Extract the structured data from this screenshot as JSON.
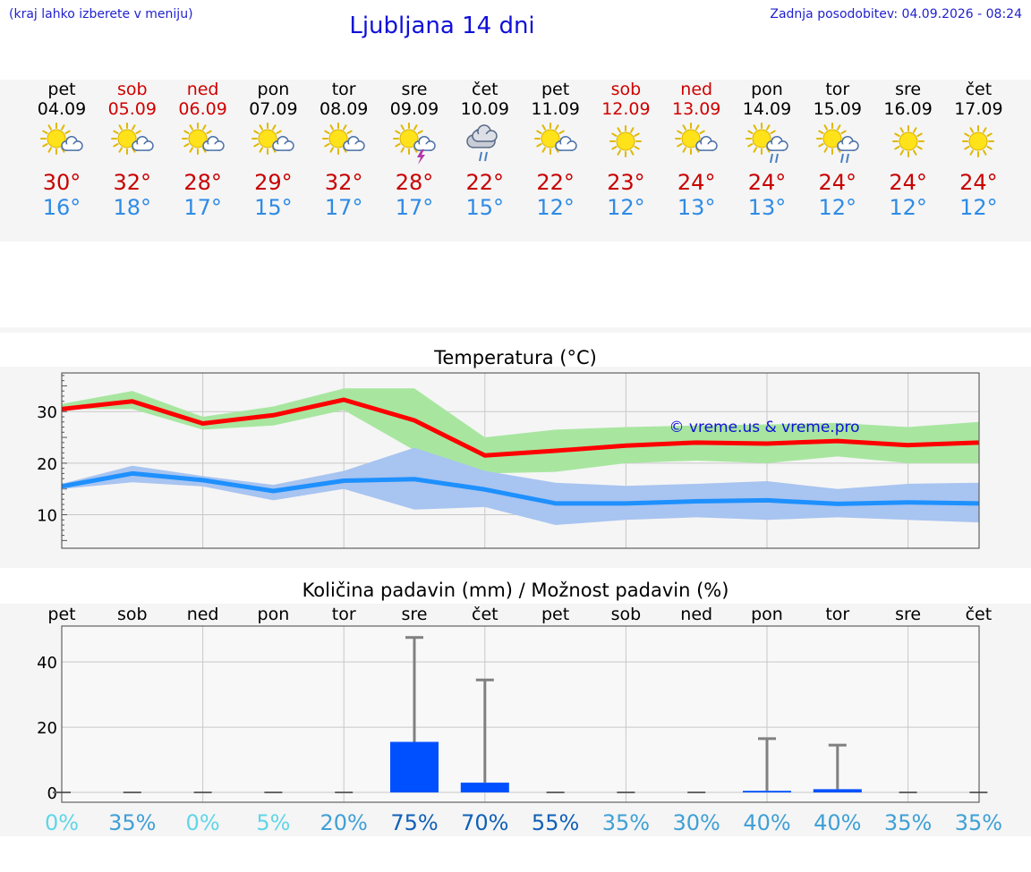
{
  "header": {
    "hint": "(kraj lahko izberete v meniju)",
    "title": "Ljubljana 14 dni",
    "update": "Zadnja posodobitev: 04.09.2026 - 08:24"
  },
  "days": [
    {
      "name": "pet",
      "date": "04.09",
      "weekend": false,
      "icon": "sun-cloud-icon",
      "max": "30°",
      "min": "16°"
    },
    {
      "name": "sob",
      "date": "05.09",
      "weekend": true,
      "icon": "sun-cloud-icon",
      "max": "32°",
      "min": "18°"
    },
    {
      "name": "ned",
      "date": "06.09",
      "weekend": true,
      "icon": "sun-cloud-icon",
      "max": "28°",
      "min": "17°"
    },
    {
      "name": "pon",
      "date": "07.09",
      "weekend": false,
      "icon": "sun-cloud-icon",
      "max": "29°",
      "min": "15°"
    },
    {
      "name": "tor",
      "date": "08.09",
      "weekend": false,
      "icon": "sun-cloud-icon",
      "max": "32°",
      "min": "17°"
    },
    {
      "name": "sre",
      "date": "09.09",
      "weekend": false,
      "icon": "sun-thunder-icon",
      "max": "28°",
      "min": "17°"
    },
    {
      "name": "čet",
      "date": "10.09",
      "weekend": false,
      "icon": "cloud-rain-icon",
      "max": "22°",
      "min": "15°"
    },
    {
      "name": "pet",
      "date": "11.09",
      "weekend": false,
      "icon": "sun-cloud-icon",
      "max": "22°",
      "min": "12°"
    },
    {
      "name": "sob",
      "date": "12.09",
      "weekend": true,
      "icon": "sun-icon",
      "max": "23°",
      "min": "12°"
    },
    {
      "name": "ned",
      "date": "13.09",
      "weekend": true,
      "icon": "sun-cloud-icon",
      "max": "24°",
      "min": "13°"
    },
    {
      "name": "pon",
      "date": "14.09",
      "weekend": false,
      "icon": "sun-cloud-rain-icon",
      "max": "24°",
      "min": "13°"
    },
    {
      "name": "tor",
      "date": "15.09",
      "weekend": false,
      "icon": "sun-cloud-rain-icon",
      "max": "24°",
      "min": "12°"
    },
    {
      "name": "sre",
      "date": "16.09",
      "weekend": false,
      "icon": "sun-icon",
      "max": "24°",
      "min": "12°"
    },
    {
      "name": "čet",
      "date": "17.09",
      "weekend": false,
      "icon": "sun-icon",
      "max": "24°",
      "min": "12°"
    }
  ],
  "colors": {
    "max_line": "#ff0000",
    "max_band": "#a8e6a0",
    "min_line": "#1e90ff",
    "min_band": "#a8c4f0",
    "bar": "#0050ff",
    "whisker": "#808080",
    "weekend": "#d00000"
  },
  "chart_data": [
    {
      "type": "line",
      "title": "Temperatura (°C)",
      "watermark": "© vreme.us & vreme.pro",
      "x": [
        "pet",
        "sob",
        "ned",
        "pon",
        "tor",
        "sre",
        "čet",
        "pet",
        "sob",
        "ned",
        "pon",
        "tor",
        "sre",
        "čet"
      ],
      "ylim": [
        3.5,
        37.5
      ],
      "yticks": [
        10,
        20,
        30
      ],
      "grid": true,
      "series": [
        {
          "role": "max",
          "values": [
            30.5,
            32,
            27.7,
            29.3,
            32.3,
            28.3,
            21.5,
            22.4,
            23.4,
            24,
            23.8,
            24.3,
            23.5,
            24
          ],
          "band_low": [
            30.5,
            30.5,
            26.5,
            27.3,
            30.3,
            22.5,
            18,
            18.3,
            20,
            20.5,
            20,
            21.3,
            20,
            20
          ],
          "band_high": [
            31.5,
            34,
            29,
            31,
            34.5,
            34.5,
            25,
            26.5,
            27,
            27.3,
            27.5,
            27.8,
            27,
            28
          ]
        },
        {
          "role": "min",
          "values": [
            15.5,
            18,
            16.7,
            14.6,
            16.6,
            16.9,
            14.9,
            12.2,
            12.2,
            12.6,
            12.8,
            12.1,
            12.4,
            12.2
          ],
          "band_low": [
            15,
            16.3,
            15.5,
            12.8,
            15,
            11,
            11.5,
            8,
            9,
            9.5,
            9,
            9.5,
            9,
            8.5
          ],
          "band_high": [
            16,
            19.5,
            17.5,
            15.8,
            18.5,
            23,
            18.5,
            16.2,
            15.6,
            16,
            16.5,
            15,
            16,
            16.2
          ]
        }
      ]
    },
    {
      "type": "bar",
      "title": "Količina padavin (mm) / Možnost padavin (%)",
      "categories": [
        "pet",
        "sob",
        "ned",
        "pon",
        "tor",
        "sre",
        "čet",
        "pet",
        "sob",
        "ned",
        "pon",
        "tor",
        "sre",
        "čet"
      ],
      "values": [
        0,
        0,
        0,
        0,
        0,
        15.5,
        3,
        0,
        0,
        0,
        0.5,
        1,
        0,
        0
      ],
      "whisker_high": [
        0,
        0,
        0,
        0,
        0,
        47.5,
        34.5,
        0,
        0,
        0,
        16.5,
        14.5,
        0,
        0
      ],
      "probability": [
        "0%",
        "35%",
        "0%",
        "5%",
        "20%",
        "75%",
        "70%",
        "55%",
        "35%",
        "30%",
        "40%",
        "40%",
        "35%",
        "35%"
      ],
      "probability_colors": [
        "#5fd6e8",
        "#3fa0d6",
        "#5fd6e8",
        "#5fd6e8",
        "#3fa0d6",
        "#1060b8",
        "#1060b8",
        "#1060b8",
        "#3fa0d6",
        "#3fa0d6",
        "#3fa0d6",
        "#3fa0d6",
        "#3fa0d6",
        "#3fa0d6"
      ],
      "ylim": [
        -3,
        51
      ],
      "yticks": [
        0,
        20,
        40
      ],
      "grid": true
    }
  ]
}
